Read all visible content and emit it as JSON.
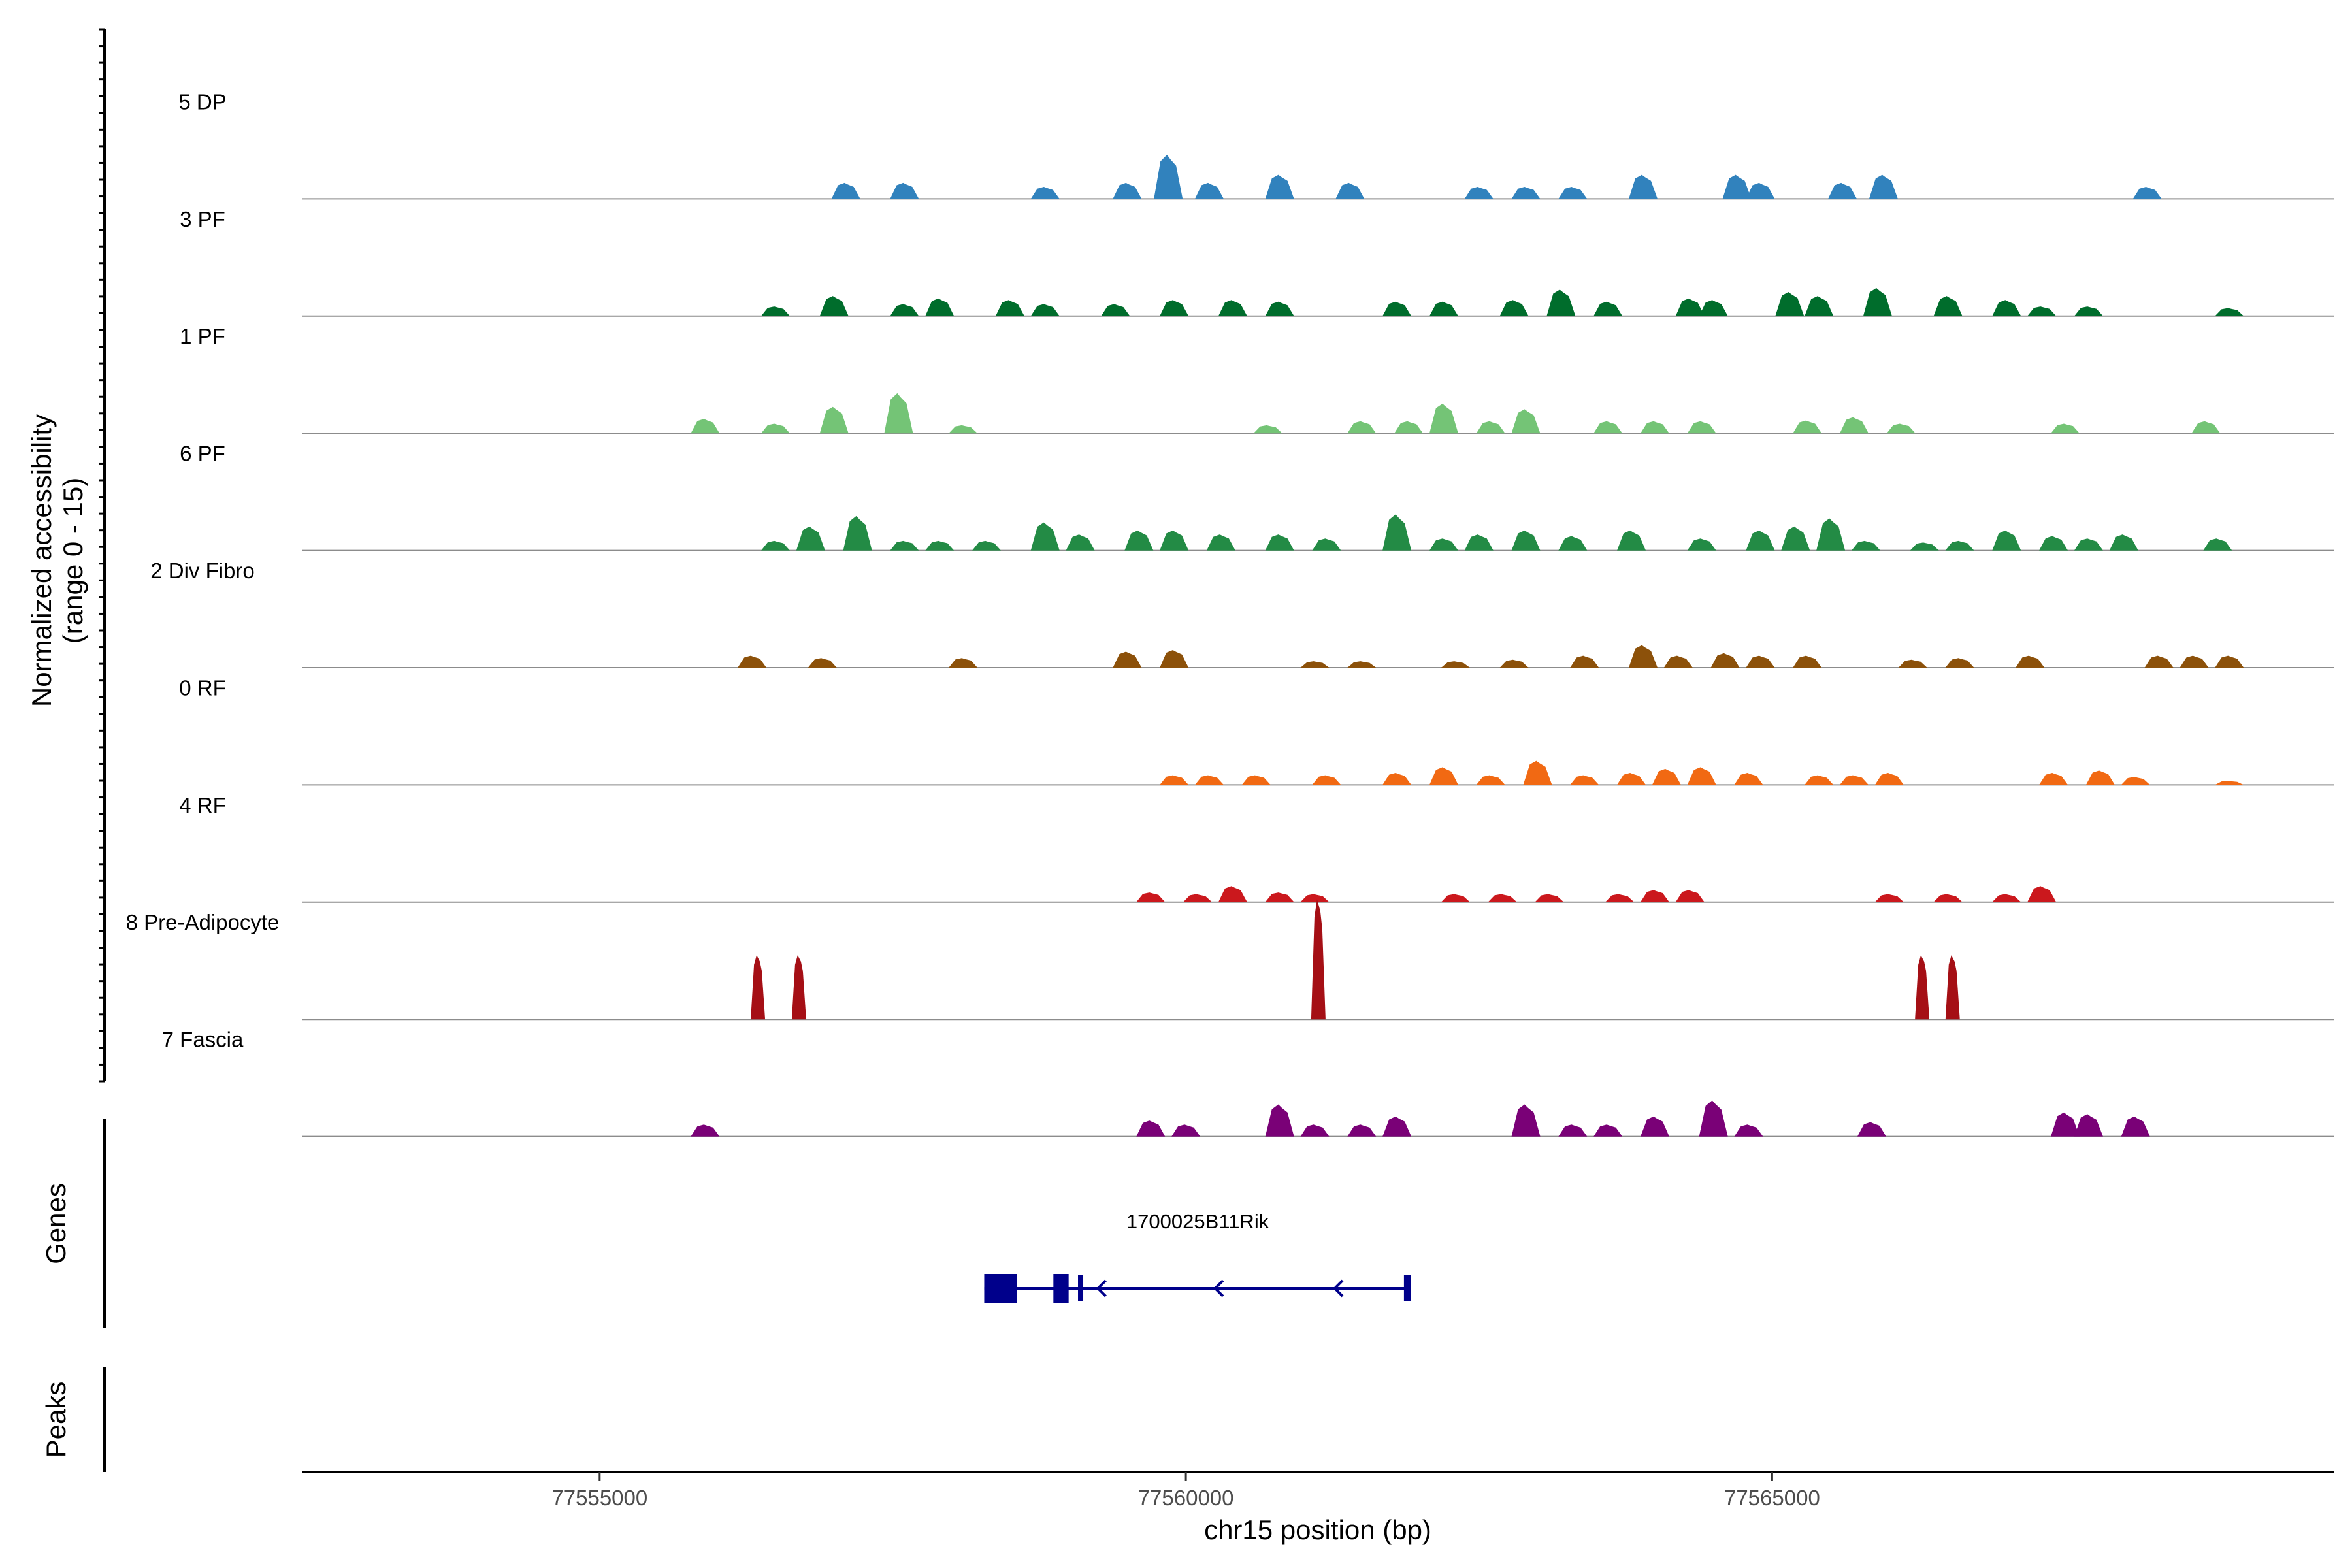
{
  "chart_data": {
    "type": "area",
    "title": "",
    "xlabel": "chr15 position (bp)",
    "ylabel": "Normalized accessibility\n(range 0 - 15)",
    "ylabel_lines": [
      "Normalized accessibility",
      "(range 0 - 15)"
    ],
    "y_range": [
      0,
      15
    ],
    "xlim": [
      77552460,
      77569790
    ],
    "x_ticks": [
      77555000,
      77560000,
      77565000
    ],
    "x_tick_labels": [
      "77555000",
      "77560000",
      "77565000"
    ],
    "tracks": [
      {
        "name": "5 DP",
        "color": "#3182bd",
        "peaks": [
          [
            77557100,
            2
          ],
          [
            77557600,
            2
          ],
          [
            77558800,
            1.5
          ],
          [
            77559500,
            2
          ],
          [
            77559850,
            5.5
          ],
          [
            77560200,
            2
          ],
          [
            77560800,
            3
          ],
          [
            77561400,
            2
          ],
          [
            77562500,
            1.5
          ],
          [
            77562900,
            1.5
          ],
          [
            77563300,
            1.5
          ],
          [
            77563900,
            3
          ],
          [
            77564700,
            3
          ],
          [
            77564900,
            2
          ],
          [
            77565600,
            2
          ],
          [
            77565950,
            3
          ],
          [
            77568200,
            1.5
          ]
        ]
      },
      {
        "name": "3 PF",
        "color": "#006d2c",
        "peaks": [
          [
            77556500,
            1.2
          ],
          [
            77557000,
            2.5
          ],
          [
            77557600,
            1.5
          ],
          [
            77557900,
            2.2
          ],
          [
            77558500,
            2
          ],
          [
            77558800,
            1.5
          ],
          [
            77559400,
            1.5
          ],
          [
            77559900,
            2
          ],
          [
            77560400,
            2
          ],
          [
            77560800,
            1.8
          ],
          [
            77561800,
            1.8
          ],
          [
            77562200,
            1.8
          ],
          [
            77562800,
            2
          ],
          [
            77563200,
            3.3
          ],
          [
            77563600,
            1.8
          ],
          [
            77564300,
            2.2
          ],
          [
            77564500,
            2
          ],
          [
            77565150,
            3
          ],
          [
            77565400,
            2.5
          ],
          [
            77565900,
            3.5
          ],
          [
            77566500,
            2.5
          ],
          [
            77567000,
            2
          ],
          [
            77567300,
            1.2
          ],
          [
            77567700,
            1.2
          ],
          [
            77568900,
            1
          ]
        ]
      },
      {
        "name": "1 PF",
        "color": "#74c476",
        "peaks": [
          [
            77555900,
            1.8
          ],
          [
            77556500,
            1.2
          ],
          [
            77557000,
            3.3
          ],
          [
            77557550,
            5
          ],
          [
            77558100,
            1
          ],
          [
            77560700,
            1
          ],
          [
            77561500,
            1.5
          ],
          [
            77561900,
            1.5
          ],
          [
            77562200,
            3.7
          ],
          [
            77562600,
            1.5
          ],
          [
            77562900,
            3
          ],
          [
            77563600,
            1.5
          ],
          [
            77564000,
            1.5
          ],
          [
            77564400,
            1.5
          ],
          [
            77565300,
            1.6
          ],
          [
            77565700,
            2
          ],
          [
            77566100,
            1.2
          ],
          [
            77567500,
            1.2
          ],
          [
            77568700,
            1.5
          ]
        ]
      },
      {
        "name": "6 PF",
        "color": "#238b45",
        "peaks": [
          [
            77556500,
            1.2
          ],
          [
            77556800,
            3
          ],
          [
            77557200,
            4.3
          ],
          [
            77557600,
            1.2
          ],
          [
            77557900,
            1.2
          ],
          [
            77558300,
            1.2
          ],
          [
            77558800,
            3.5
          ],
          [
            77559100,
            2
          ],
          [
            77559600,
            2.5
          ],
          [
            77559900,
            2.5
          ],
          [
            77560300,
            2
          ],
          [
            77560800,
            2
          ],
          [
            77561200,
            1.5
          ],
          [
            77561800,
            4.5
          ],
          [
            77562200,
            1.5
          ],
          [
            77562500,
            2
          ],
          [
            77562900,
            2.5
          ],
          [
            77563300,
            1.8
          ],
          [
            77563800,
            2.5
          ],
          [
            77564400,
            1.5
          ],
          [
            77564900,
            2.5
          ],
          [
            77565200,
            3
          ],
          [
            77565500,
            4
          ],
          [
            77565800,
            1.2
          ],
          [
            77566300,
            1
          ],
          [
            77566600,
            1.2
          ],
          [
            77567000,
            2.5
          ],
          [
            77567400,
            1.8
          ],
          [
            77567700,
            1.5
          ],
          [
            77568000,
            2
          ],
          [
            77568800,
            1.5
          ]
        ]
      },
      {
        "name": "2 Div Fibro",
        "color": "#8c510a",
        "peaks": [
          [
            77556300,
            1.5
          ],
          [
            77556900,
            1.2
          ],
          [
            77558100,
            1.2
          ],
          [
            77559500,
            2
          ],
          [
            77559900,
            2.2
          ],
          [
            77561100,
            0.8
          ],
          [
            77561500,
            0.8
          ],
          [
            77562300,
            0.8
          ],
          [
            77562800,
            1
          ],
          [
            77563400,
            1.5
          ],
          [
            77563900,
            2.8
          ],
          [
            77564200,
            1.5
          ],
          [
            77564600,
            1.8
          ],
          [
            77564900,
            1.5
          ],
          [
            77565300,
            1.5
          ],
          [
            77566200,
            1
          ],
          [
            77566600,
            1.2
          ],
          [
            77567200,
            1.5
          ],
          [
            77568300,
            1.5
          ],
          [
            77568600,
            1.5
          ],
          [
            77568900,
            1.5
          ]
        ]
      },
      {
        "name": "0 RF",
        "color": "#f16913",
        "peaks": [
          [
            77559900,
            1.2
          ],
          [
            77560200,
            1.2
          ],
          [
            77560600,
            1.2
          ],
          [
            77561200,
            1.2
          ],
          [
            77561800,
            1.5
          ],
          [
            77562200,
            2.2
          ],
          [
            77562600,
            1.2
          ],
          [
            77563000,
            3
          ],
          [
            77563400,
            1.2
          ],
          [
            77563800,
            1.5
          ],
          [
            77564100,
            2
          ],
          [
            77564400,
            2.2
          ],
          [
            77564800,
            1.5
          ],
          [
            77565400,
            1.2
          ],
          [
            77565700,
            1.2
          ],
          [
            77566000,
            1.5
          ],
          [
            77567400,
            1.5
          ],
          [
            77567800,
            1.8
          ],
          [
            77568100,
            1
          ],
          [
            77568900,
            0.5
          ]
        ]
      },
      {
        "name": "4 RF",
        "color": "#cb181d",
        "peaks": [
          [
            77559700,
            1.2
          ],
          [
            77560100,
            1
          ],
          [
            77560400,
            2
          ],
          [
            77560800,
            1.2
          ],
          [
            77561100,
            1
          ],
          [
            77562300,
            1
          ],
          [
            77562700,
            1
          ],
          [
            77563100,
            1
          ],
          [
            77563700,
            1
          ],
          [
            77564000,
            1.5
          ],
          [
            77564300,
            1.5
          ],
          [
            77566000,
            1
          ],
          [
            77566500,
            1
          ],
          [
            77567000,
            1
          ],
          [
            77567300,
            2
          ]
        ]
      },
      {
        "name": "8 Pre-Adipocyte",
        "color": "#a50f15",
        "peaks": [
          [
            77556350,
            8
          ],
          [
            77556700,
            8
          ],
          [
            77561130,
            15
          ],
          [
            77566280,
            8
          ],
          [
            77566540,
            8
          ]
        ]
      },
      {
        "name": "7 Fascia",
        "color": "#7a0177",
        "peaks": [
          [
            77555900,
            1.5
          ],
          [
            77559700,
            2
          ],
          [
            77560000,
            1.5
          ],
          [
            77560800,
            4
          ],
          [
            77561100,
            1.5
          ],
          [
            77561500,
            1.5
          ],
          [
            77561800,
            2.5
          ],
          [
            77562900,
            4
          ],
          [
            77563300,
            1.5
          ],
          [
            77563600,
            1.5
          ],
          [
            77564000,
            2.5
          ],
          [
            77564500,
            4.5
          ],
          [
            77564800,
            1.5
          ],
          [
            77565850,
            1.8
          ],
          [
            77567500,
            3
          ],
          [
            77567700,
            2.8
          ],
          [
            77568100,
            2.5
          ]
        ]
      }
    ],
    "genes": [
      {
        "name": "1700025B11Rik",
        "start": 77558280,
        "end": 77561920,
        "strand": "-",
        "color": "#00008b",
        "exons": [
          [
            77558280,
            77558560
          ],
          [
            77558870,
            77559000
          ],
          [
            77559080,
            77559110
          ],
          [
            77561860,
            77561920
          ]
        ]
      }
    ],
    "panel_labels": {
      "genes": "Genes",
      "peaks": "Peaks"
    },
    "peaks_track": []
  }
}
